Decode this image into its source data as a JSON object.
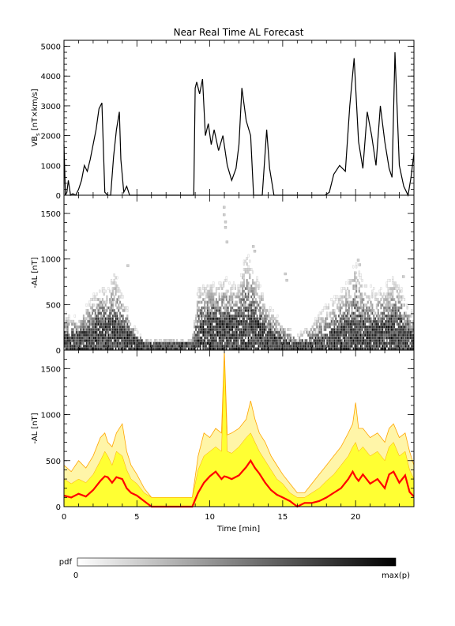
{
  "title": "Near Real Time AL Forecast",
  "colors": {
    "ink": "#000000",
    "band_outer": "#fff5a8",
    "band_inner": "#ffff33",
    "band_edge": "#ffa500",
    "median": "#ff0000"
  },
  "chart_data": [
    {
      "type": "line",
      "ylabel": "VB_s [nT×km/s]",
      "ylabel_main": "VB",
      "ylabel_sub": "s",
      "ylabel_rest": " [nT×km/s]",
      "xlim": [
        0,
        24
      ],
      "ylim": [
        0,
        5200
      ],
      "yticks": [
        0,
        1000,
        2000,
        3000,
        4000,
        5000
      ],
      "ytick_labels": [
        "0",
        "1000",
        "2000",
        "3000",
        "4000",
        "5000"
      ],
      "series": [
        {
          "x": [
            0,
            0.1,
            0.2,
            0.3,
            0.45,
            0.6,
            0.8,
            1.0,
            1.2,
            1.4,
            1.6,
            1.8,
            2.0,
            2.2,
            2.4,
            2.6,
            2.8,
            3.0,
            3.2,
            3.4,
            3.6,
            3.8,
            3.9,
            4.1,
            4.3,
            4.5,
            5.0,
            6.0,
            7.0,
            8.0,
            8.9,
            9.0,
            9.1,
            9.3,
            9.5,
            9.7,
            9.9,
            10.1,
            10.3,
            10.6,
            10.9,
            11.2,
            11.5,
            11.8,
            12.0,
            12.2,
            12.5,
            12.8,
            13.0,
            13.3,
            13.6,
            13.9,
            14.1,
            14.4,
            14.7,
            15.0,
            15.5,
            16.0,
            16.5,
            17.0,
            17.5,
            17.9,
            18.2,
            18.5,
            18.9,
            19.3,
            19.6,
            19.9,
            20.2,
            20.5,
            20.8,
            21.1,
            21.4,
            21.7,
            22.0,
            22.3,
            22.5,
            22.7,
            23.0,
            23.3,
            23.6,
            23.8,
            24.0
          ],
          "y": [
            1700,
            0,
            100,
            500,
            0,
            50,
            0,
            200,
            500,
            1000,
            800,
            1200,
            1700,
            2200,
            2900,
            3100,
            100,
            0,
            0,
            1300,
            2200,
            2800,
            1200,
            100,
            300,
            0,
            0,
            0,
            0,
            0,
            0,
            3600,
            3800,
            3400,
            3900,
            2000,
            2400,
            1700,
            2200,
            1500,
            2000,
            1000,
            500,
            900,
            1700,
            3600,
            2500,
            2000,
            0,
            0,
            0,
            2200,
            900,
            0,
            0,
            0,
            0,
            0,
            0,
            0,
            0,
            0,
            100,
            700,
            1000,
            800,
            3000,
            4600,
            1800,
            900,
            2800,
            2000,
            1000,
            3000,
            1800,
            900,
            600,
            4800,
            1000,
            300,
            0,
            600,
            1400
          ]
        }
      ]
    },
    {
      "type": "heatmap",
      "ylabel": "-AL [nT]",
      "xlim": [
        0,
        24
      ],
      "ylim": [
        0,
        1700
      ],
      "yticks": [
        0,
        500,
        1000,
        1500
      ],
      "ytick_labels": [
        "0",
        "500",
        "1000",
        "1500"
      ],
      "profile": {
        "x": [
          0,
          1,
          2,
          2.5,
          3,
          3.5,
          4,
          4.5,
          5,
          5.5,
          6,
          7,
          8,
          8.8,
          9.2,
          10,
          10.5,
          11,
          11.5,
          12,
          12.5,
          13,
          13.5,
          14,
          14.5,
          15,
          16,
          17,
          18,
          19,
          19.5,
          20,
          20.5,
          21,
          21.5,
          22,
          22.5,
          23,
          23.5,
          24
        ],
        "median": [
          120,
          150,
          250,
          320,
          280,
          300,
          260,
          180,
          120,
          80,
          60,
          60,
          60,
          60,
          250,
          350,
          380,
          330,
          340,
          360,
          400,
          360,
          280,
          200,
          150,
          100,
          60,
          80,
          120,
          250,
          300,
          320,
          280,
          260,
          250,
          280,
          300,
          320,
          200,
          150
        ],
        "max": [
          400,
          350,
          600,
          700,
          650,
          900,
          600,
          400,
          200,
          100,
          100,
          100,
          100,
          100,
          700,
          750,
          700,
          800,
          750,
          700,
          1100,
          900,
          700,
          500,
          400,
          300,
          150,
          300,
          500,
          650,
          750,
          1000,
          750,
          700,
          650,
          700,
          800,
          750,
          500,
          400
        ]
      },
      "scatter_outliers": [
        [
          10.9,
          1580
        ],
        [
          10.9,
          1500
        ],
        [
          11.0,
          1420
        ],
        [
          11.0,
          1360
        ],
        [
          11.1,
          1200
        ],
        [
          12.9,
          1150
        ],
        [
          13.0,
          1100
        ],
        [
          15.1,
          850
        ],
        [
          15.2,
          780
        ],
        [
          20.1,
          1000
        ],
        [
          20.2,
          950
        ],
        [
          19.9,
          860
        ],
        [
          23.2,
          820
        ],
        [
          4.3,
          940
        ]
      ]
    },
    {
      "type": "area",
      "ylabel": "-AL [nT]",
      "xlabel": "Time [min]",
      "xlim": [
        0,
        24
      ],
      "ylim": [
        0,
        1700
      ],
      "xticks": [
        0,
        5,
        10,
        15,
        20
      ],
      "xtick_labels": [
        "0",
        "5",
        "10",
        "15",
        "20"
      ],
      "yticks": [
        0,
        500,
        1000,
        1500
      ],
      "ytick_labels": [
        "0",
        "500",
        "1000",
        "1500"
      ],
      "x": [
        0,
        0.5,
        1,
        1.5,
        2,
        2.5,
        2.8,
        3,
        3.3,
        3.6,
        4,
        4.3,
        4.6,
        5,
        5.5,
        6,
        7,
        8,
        8.8,
        9.2,
        9.6,
        10,
        10.4,
        10.8,
        11,
        11.2,
        11.5,
        12,
        12.5,
        12.8,
        13.1,
        13.4,
        13.8,
        14.2,
        14.6,
        15,
        15.5,
        16,
        16.5,
        17,
        17.5,
        18,
        18.5,
        19,
        19.5,
        19.8,
        20,
        20.2,
        20.5,
        21,
        21.5,
        22,
        22.3,
        22.6,
        23,
        23.4,
        23.7,
        24
      ],
      "median": [
        120,
        100,
        140,
        110,
        180,
        280,
        330,
        320,
        260,
        320,
        300,
        200,
        150,
        120,
        60,
        0,
        0,
        0,
        0,
        150,
        260,
        330,
        380,
        300,
        330,
        320,
        300,
        340,
        430,
        500,
        420,
        360,
        260,
        180,
        130,
        100,
        60,
        0,
        40,
        40,
        60,
        100,
        150,
        200,
        300,
        380,
        320,
        280,
        350,
        250,
        300,
        200,
        350,
        380,
        260,
        340,
        160,
        110
      ],
      "inner_upper": [
        300,
        250,
        300,
        260,
        350,
        500,
        600,
        550,
        450,
        600,
        550,
        400,
        300,
        250,
        150,
        100,
        100,
        100,
        100,
        400,
        550,
        600,
        650,
        600,
        1650,
        600,
        580,
        650,
        750,
        800,
        700,
        600,
        500,
        400,
        300,
        250,
        150,
        100,
        100,
        150,
        200,
        280,
        350,
        450,
        550,
        650,
        700,
        600,
        650,
        550,
        600,
        500,
        650,
        700,
        550,
        600,
        400,
        300
      ],
      "outer_upper": [
        450,
        380,
        500,
        420,
        550,
        750,
        800,
        700,
        650,
        800,
        900,
        600,
        450,
        350,
        200,
        100,
        100,
        100,
        100,
        550,
        800,
        750,
        850,
        800,
        1700,
        780,
        800,
        850,
        950,
        1150,
        950,
        800,
        700,
        550,
        450,
        350,
        250,
        150,
        150,
        250,
        350,
        450,
        550,
        650,
        800,
        900,
        1130,
        850,
        850,
        750,
        800,
        700,
        850,
        900,
        750,
        800,
        600,
        450
      ],
      "series": [
        {
          "name": "",
          "role": "median"
        },
        {
          "name": "",
          "role": "inner_band"
        },
        {
          "name": "",
          "role": "outer_band"
        }
      ]
    }
  ],
  "colorbar": {
    "label": "pdf",
    "min_label": "0",
    "max_label": "max(p)"
  }
}
